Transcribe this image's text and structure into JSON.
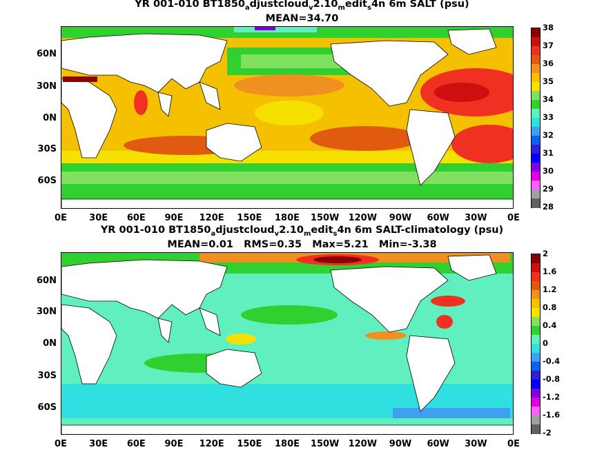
{
  "panels": [
    {
      "title_line1": "YR 001-010 BT1850",
      "title_sub1": "a",
      "title_mid1": "djustcloud",
      "title_sub2": "v",
      "title_mid2": "2.10",
      "title_sub3": "m",
      "title_mid3": "edit",
      "title_sub4": "s",
      "title_end": "4n 6m SALT (psu)",
      "stats": "MEAN=34.70",
      "colorbar": {
        "labels": [
          "38",
          "37",
          "36",
          "35",
          "34",
          "33",
          "32",
          "31",
          "30",
          "29",
          "28"
        ],
        "colors": [
          "#8b0000",
          "#cc1010",
          "#f03020",
          "#e05a10",
          "#f09020",
          "#f5c000",
          "#f5e000",
          "#80e060",
          "#30d030",
          "#60f0c0",
          "#30e0e0",
          "#40a0f0",
          "#1060f0",
          "#3020d0",
          "#0000ff",
          "#8000e0",
          "#e000e0",
          "#ff60ff",
          "#a0a0a0",
          "#606060"
        ]
      }
    },
    {
      "title_line1": "YR 001-010 BT1850",
      "title_sub1": "a",
      "title_mid1": "djustcloud",
      "title_sub2": "v",
      "title_mid2": "2.10",
      "title_sub3": "m",
      "title_mid3": "edit",
      "title_sub4": "s",
      "title_end": "4n 6m SALT-climatology (psu)",
      "stats": "MEAN=0.01   RMS=0.35   Max=5.21   Min=-3.38",
      "colorbar": {
        "labels": [
          "2",
          "1.6",
          "1.2",
          "0.8",
          "0.4",
          "0",
          "-0.4",
          "-0.8",
          "-1.2",
          "-1.6",
          "-2"
        ],
        "colors": [
          "#8b0000",
          "#cc1010",
          "#f03020",
          "#e05a10",
          "#f09020",
          "#f5c000",
          "#f5e000",
          "#80e060",
          "#30d030",
          "#60f0c0",
          "#30e0e0",
          "#40a0f0",
          "#1060f0",
          "#3020d0",
          "#0000ff",
          "#8000e0",
          "#e000e0",
          "#ff60ff",
          "#a0a0a0",
          "#606060"
        ]
      }
    }
  ],
  "axes": {
    "y_ticks": [
      "60N",
      "30N",
      "0N",
      "30S",
      "60S"
    ],
    "x_ticks": [
      "0E",
      "30E",
      "60E",
      "90E",
      "120E",
      "150E",
      "180E",
      "150W",
      "120W",
      "90W",
      "60W",
      "30W",
      "0E"
    ]
  }
}
